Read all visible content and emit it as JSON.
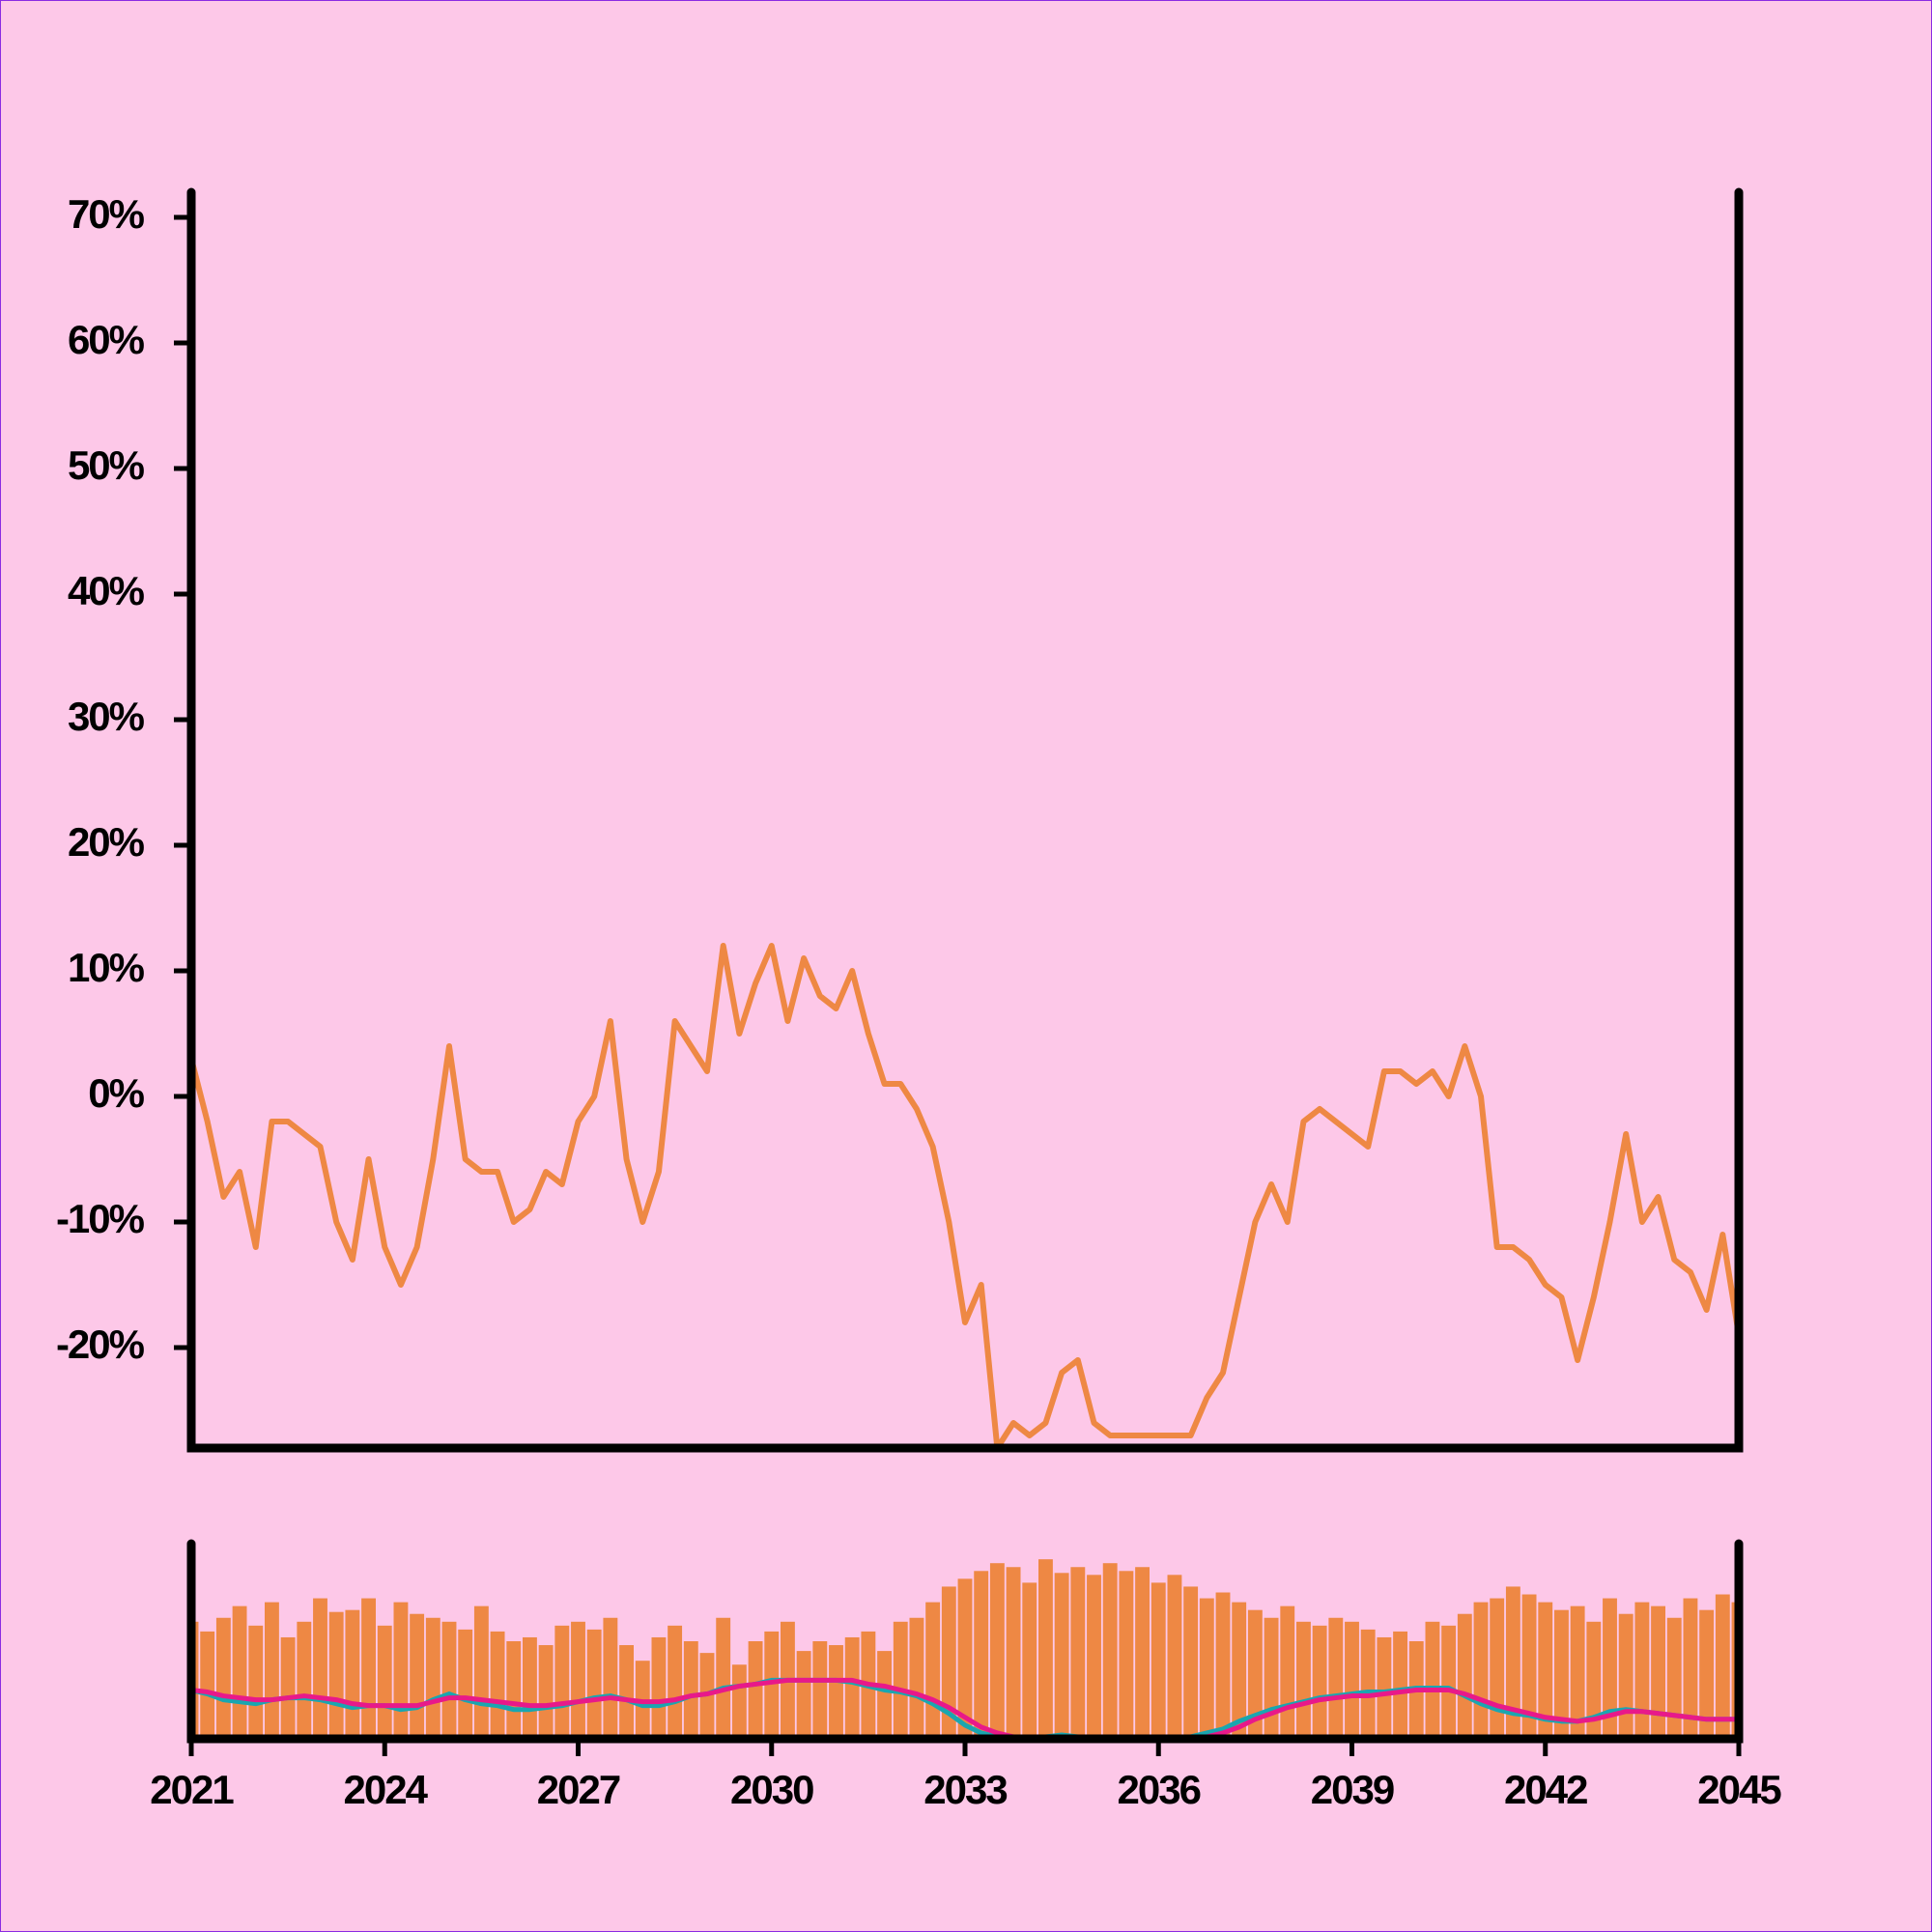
{
  "chart_data": [
    {
      "type": "line",
      "x": [
        2021,
        2021.25,
        2021.5,
        2021.75,
        2022,
        2022.25,
        2022.5,
        2022.75,
        2023,
        2023.25,
        2023.5,
        2023.75,
        2024,
        2024.25,
        2024.5,
        2024.75,
        2025,
        2025.25,
        2025.5,
        2025.75,
        2026,
        2026.25,
        2026.5,
        2026.75,
        2027,
        2027.25,
        2027.5,
        2027.75,
        2028,
        2028.25,
        2028.5,
        2028.75,
        2029,
        2029.25,
        2029.5,
        2029.75,
        2030,
        2030.25,
        2030.5,
        2030.75,
        2031,
        2031.25,
        2031.5,
        2031.75,
        2032,
        2032.25,
        2032.5,
        2032.75,
        2033,
        2033.25,
        2033.5,
        2033.75,
        2034,
        2034.25,
        2034.5,
        2034.75,
        2035,
        2035.25,
        2035.5,
        2035.75,
        2036,
        2036.25,
        2036.5,
        2036.75,
        2037,
        2037.25,
        2037.5,
        2037.75,
        2038,
        2038.25,
        2038.5,
        2038.75,
        2039,
        2039.25,
        2039.5,
        2039.75,
        2040,
        2040.25,
        2040.5,
        2040.75,
        2041,
        2041.25,
        2041.5,
        2041.75,
        2042,
        2042.25,
        2042.5,
        2042.75,
        2043,
        2043.25,
        2043.5,
        2043.75,
        2044,
        2044.25,
        2044.5,
        2044.75,
        2045
      ],
      "series": [
        {
          "color": "#ee8844",
          "values": [
            3,
            -2,
            -8,
            -6,
            -12,
            -2,
            -2,
            -3,
            -4,
            -10,
            -13,
            -5,
            -12,
            -15,
            -12,
            -5,
            4,
            -5,
            -6,
            -6,
            -10,
            -9,
            -6,
            -7,
            -2,
            0,
            6,
            -5,
            -10,
            -6,
            6,
            4,
            2,
            12,
            5,
            9,
            12,
            6,
            11,
            8,
            7,
            10,
            5,
            1,
            1,
            -1,
            -4,
            -10,
            -18,
            -15,
            -28,
            -26,
            -27,
            -26,
            -22,
            -21,
            -26,
            -27,
            -27,
            -27,
            -27,
            -27,
            -27,
            -24,
            -22,
            -16,
            -10,
            -7,
            -10,
            -2,
            -1,
            -2,
            -3,
            -4,
            2,
            2,
            1,
            2,
            0,
            4,
            0,
            -12,
            -12,
            -13,
            -15,
            -16,
            -21,
            -16,
            -10,
            -3,
            -10,
            -8,
            -13,
            -14,
            -17,
            -11,
            -19
          ]
        }
      ],
      "xlim": [
        2021,
        2045
      ],
      "ylim": [
        -28,
        72
      ],
      "yticks": [
        {
          "value": -20,
          "label": "-20%"
        },
        {
          "value": -10,
          "label": "-10%"
        },
        {
          "value": 0,
          "label": "0%"
        },
        {
          "value": 10,
          "label": "10%"
        },
        {
          "value": 20,
          "label": "20%"
        },
        {
          "value": 30,
          "label": "30%"
        },
        {
          "value": 40,
          "label": "40%"
        },
        {
          "value": 50,
          "label": "50%"
        },
        {
          "value": 60,
          "label": "60%"
        },
        {
          "value": 70,
          "label": "70%"
        }
      ]
    },
    {
      "type": "bar",
      "x": [
        2021,
        2021.25,
        2021.5,
        2021.75,
        2022,
        2022.25,
        2022.5,
        2022.75,
        2023,
        2023.25,
        2023.5,
        2023.75,
        2024,
        2024.25,
        2024.5,
        2024.75,
        2025,
        2025.25,
        2025.5,
        2025.75,
        2026,
        2026.25,
        2026.5,
        2026.75,
        2027,
        2027.25,
        2027.5,
        2027.75,
        2028,
        2028.25,
        2028.5,
        2028.75,
        2029,
        2029.25,
        2029.5,
        2029.75,
        2030,
        2030.25,
        2030.5,
        2030.75,
        2031,
        2031.25,
        2031.5,
        2031.75,
        2032,
        2032.25,
        2032.5,
        2032.75,
        2033,
        2033.25,
        2033.5,
        2033.75,
        2034,
        2034.25,
        2034.5,
        2034.75,
        2035,
        2035.25,
        2035.5,
        2035.75,
        2036,
        2036.25,
        2036.5,
        2036.75,
        2037,
        2037.25,
        2037.5,
        2037.75,
        2038,
        2038.25,
        2038.5,
        2038.75,
        2039,
        2039.25,
        2039.5,
        2039.75,
        2040,
        2040.25,
        2040.5,
        2040.75,
        2041,
        2041.25,
        2041.5,
        2041.75,
        2042,
        2042.25,
        2042.5,
        2042.75,
        2043,
        2043.25,
        2043.5,
        2043.75,
        2044,
        2044.25,
        2044.5,
        2044.75,
        2045
      ],
      "values": [
        60,
        55,
        62,
        68,
        58,
        70,
        52,
        60,
        72,
        65,
        66,
        72,
        58,
        70,
        64,
        62,
        60,
        56,
        68,
        55,
        50,
        52,
        48,
        58,
        60,
        56,
        62,
        48,
        40,
        52,
        58,
        50,
        44,
        62,
        38,
        50,
        55,
        60,
        45,
        50,
        48,
        52,
        55,
        45,
        60,
        62,
        70,
        78,
        82,
        86,
        90,
        88,
        80,
        92,
        85,
        88,
        84,
        90,
        86,
        88,
        80,
        84,
        78,
        72,
        75,
        70,
        66,
        62,
        68,
        60,
        58,
        62,
        60,
        56,
        52,
        55,
        50,
        60,
        58,
        64,
        70,
        72,
        78,
        74,
        70,
        66,
        68,
        60,
        72,
        64,
        70,
        68,
        62,
        72,
        66,
        74,
        70
      ],
      "color": "#ee8844",
      "series": [
        {
          "color": "#1aa6b0",
          "values": [
            25,
            23,
            20,
            19,
            18,
            20,
            21,
            21,
            20,
            18,
            16,
            17,
            17,
            15,
            16,
            20,
            23,
            20,
            18,
            17,
            15,
            15,
            16,
            17,
            19,
            21,
            22,
            20,
            17,
            17,
            19,
            22,
            23,
            26,
            27,
            28,
            30,
            30,
            30,
            30,
            30,
            29,
            27,
            25,
            24,
            22,
            18,
            13,
            7,
            3,
            1,
            0,
            0,
            1,
            2,
            1,
            0,
            0,
            0,
            0,
            0,
            0,
            1,
            3,
            5,
            9,
            12,
            15,
            17,
            19,
            21,
            22,
            23,
            24,
            24,
            25,
            26,
            26,
            26,
            22,
            18,
            15,
            13,
            12,
            10,
            9,
            9,
            11,
            14,
            15,
            14,
            13,
            12,
            11,
            10,
            10,
            10
          ]
        },
        {
          "color": "#e8198a",
          "values": [
            25,
            24,
            22,
            21,
            20,
            20,
            21,
            22,
            21,
            20,
            18,
            17,
            17,
            17,
            17,
            19,
            21,
            21,
            20,
            19,
            18,
            17,
            17,
            18,
            19,
            20,
            21,
            20,
            19,
            19,
            20,
            22,
            23,
            25,
            27,
            28,
            29,
            30,
            30,
            30,
            30,
            30,
            28,
            27,
            25,
            23,
            20,
            16,
            11,
            6,
            3,
            1,
            0,
            0,
            0,
            0,
            0,
            0,
            0,
            0,
            0,
            0,
            0,
            1,
            3,
            6,
            10,
            13,
            16,
            18,
            20,
            21,
            22,
            22,
            23,
            24,
            25,
            25,
            25,
            23,
            20,
            17,
            15,
            13,
            11,
            10,
            9,
            10,
            12,
            14,
            14,
            13,
            12,
            11,
            10,
            10,
            10
          ]
        }
      ],
      "xlim": [
        2021,
        2045
      ],
      "ylim": [
        0,
        100
      ],
      "xticks": [
        2021,
        2024,
        2027,
        2030,
        2033,
        2036,
        2039,
        2042,
        2045
      ]
    }
  ]
}
